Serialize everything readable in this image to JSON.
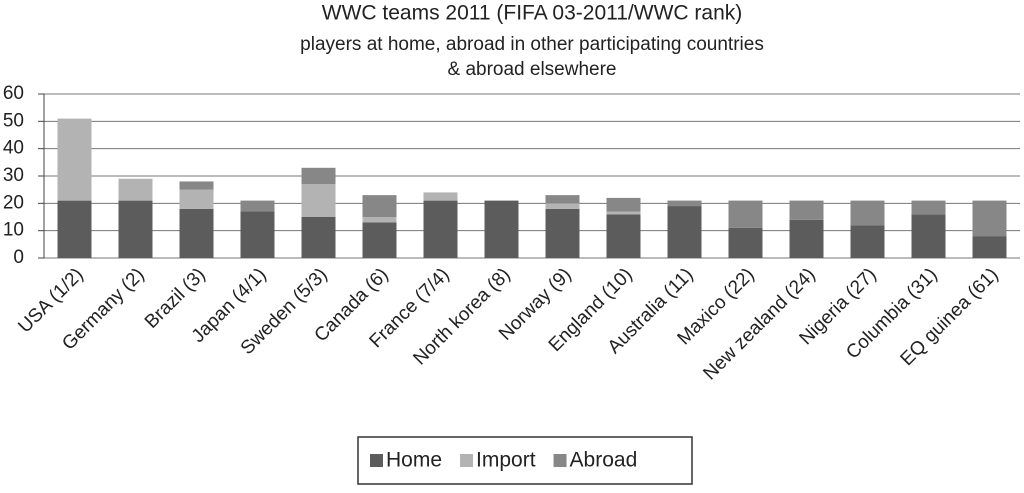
{
  "chart_data": {
    "type": "stacked_bar",
    "title": "WWC teams 2011 (FIFA 03-2011/WWC rank)",
    "subtitle": [
      "players at home, abroad in other participating countries",
      "& abroad elsewhere"
    ],
    "categories": [
      "USA (1/2)",
      "Germany (2)",
      "Brazil (3)",
      "Japan (4/1)",
      "Sweden (5/3)",
      "Canada (6)",
      "France (7/4)",
      "North korea (8)",
      "Norway (9)",
      "England (10)",
      "Australia (11)",
      "Maxico (22)",
      "New zealand (24)",
      "Nigeria (27)",
      "Columbia (31)",
      "EQ guinea (61)"
    ],
    "series": [
      {
        "name": "Home",
        "color": "#5c5c5c",
        "values": [
          21,
          21,
          18,
          17,
          15,
          13,
          21,
          21,
          18,
          16,
          19,
          11,
          14,
          12,
          16,
          8
        ]
      },
      {
        "name": "Import",
        "color": "#b3b3b3",
        "values": [
          30,
          8,
          7,
          0,
          12,
          2,
          3,
          0,
          2,
          1,
          0,
          0,
          0,
          0,
          0,
          0
        ]
      },
      {
        "name": "Abroad",
        "color": "#878787",
        "values": [
          0,
          0,
          3,
          4,
          6,
          8,
          0,
          0,
          3,
          5,
          2,
          10,
          7,
          9,
          5,
          13
        ]
      }
    ],
    "ylim": [
      0,
      60
    ],
    "yticks": [
      0,
      10,
      20,
      30,
      40,
      50,
      60
    ],
    "grid": true,
    "legend": "bottom"
  }
}
